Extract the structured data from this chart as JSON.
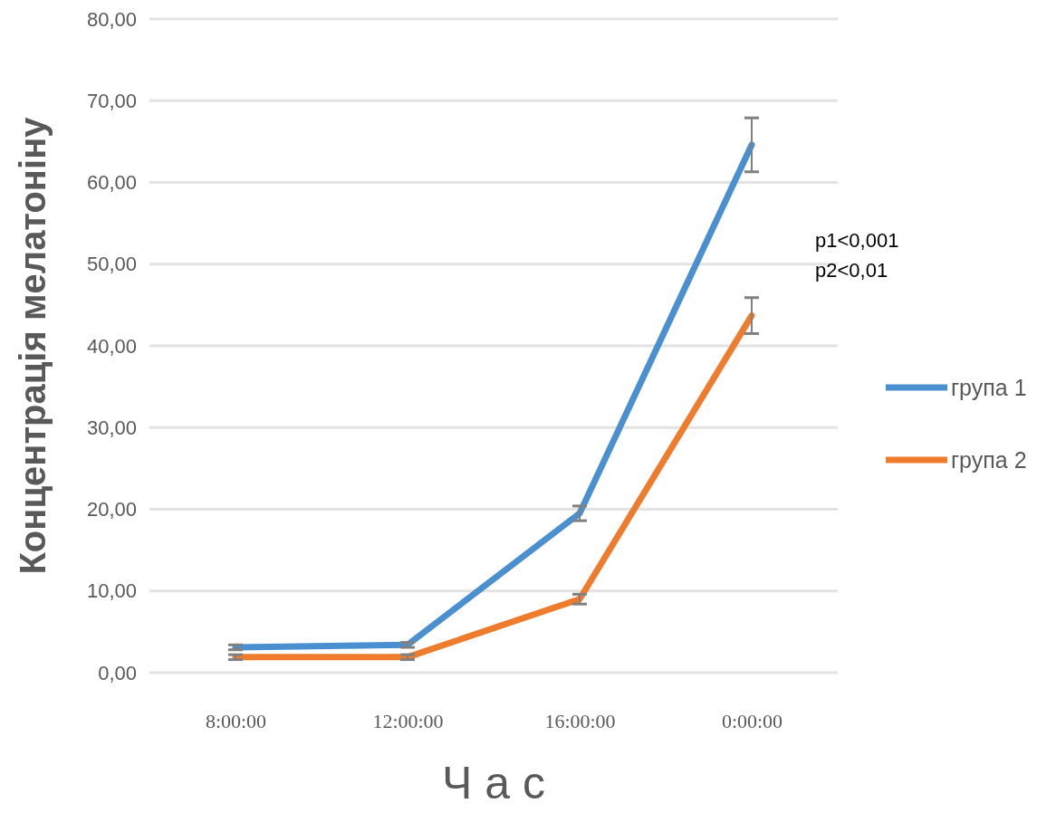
{
  "chart_data": {
    "type": "line",
    "xlabel": "Ч а с",
    "ylabel": "Концентрація мелатоніну",
    "categories": [
      "8:00:00",
      "12:00:00",
      "16:00:00",
      "0:00:00"
    ],
    "series": [
      {
        "name": "група 1",
        "color": "#4a90d0",
        "values": [
          3.1,
          3.4,
          19.5,
          64.6
        ],
        "errors": [
          0.3,
          0.3,
          0.9,
          3.3
        ]
      },
      {
        "name": "група 2",
        "color": "#ef7b2c",
        "values": [
          1.9,
          1.9,
          9.0,
          43.7
        ],
        "errors": [
          0.3,
          0.3,
          0.6,
          2.2
        ]
      }
    ],
    "ylim": [
      0,
      80
    ],
    "yticks": [
      {
        "value": 0,
        "label": "0,00"
      },
      {
        "value": 10,
        "label": "10,00"
      },
      {
        "value": 20,
        "label": "20,00"
      },
      {
        "value": 30,
        "label": "30,00"
      },
      {
        "value": 40,
        "label": "40,00"
      },
      {
        "value": 50,
        "label": "50,00"
      },
      {
        "value": 60,
        "label": "60,00"
      },
      {
        "value": 70,
        "label": "70,00"
      },
      {
        "value": 80,
        "label": "80,00"
      }
    ],
    "grid": "y",
    "legend": "right",
    "marker": "none",
    "line_style": "solid",
    "annotations": [
      "p1<0,001",
      "p2<0,01"
    ]
  }
}
